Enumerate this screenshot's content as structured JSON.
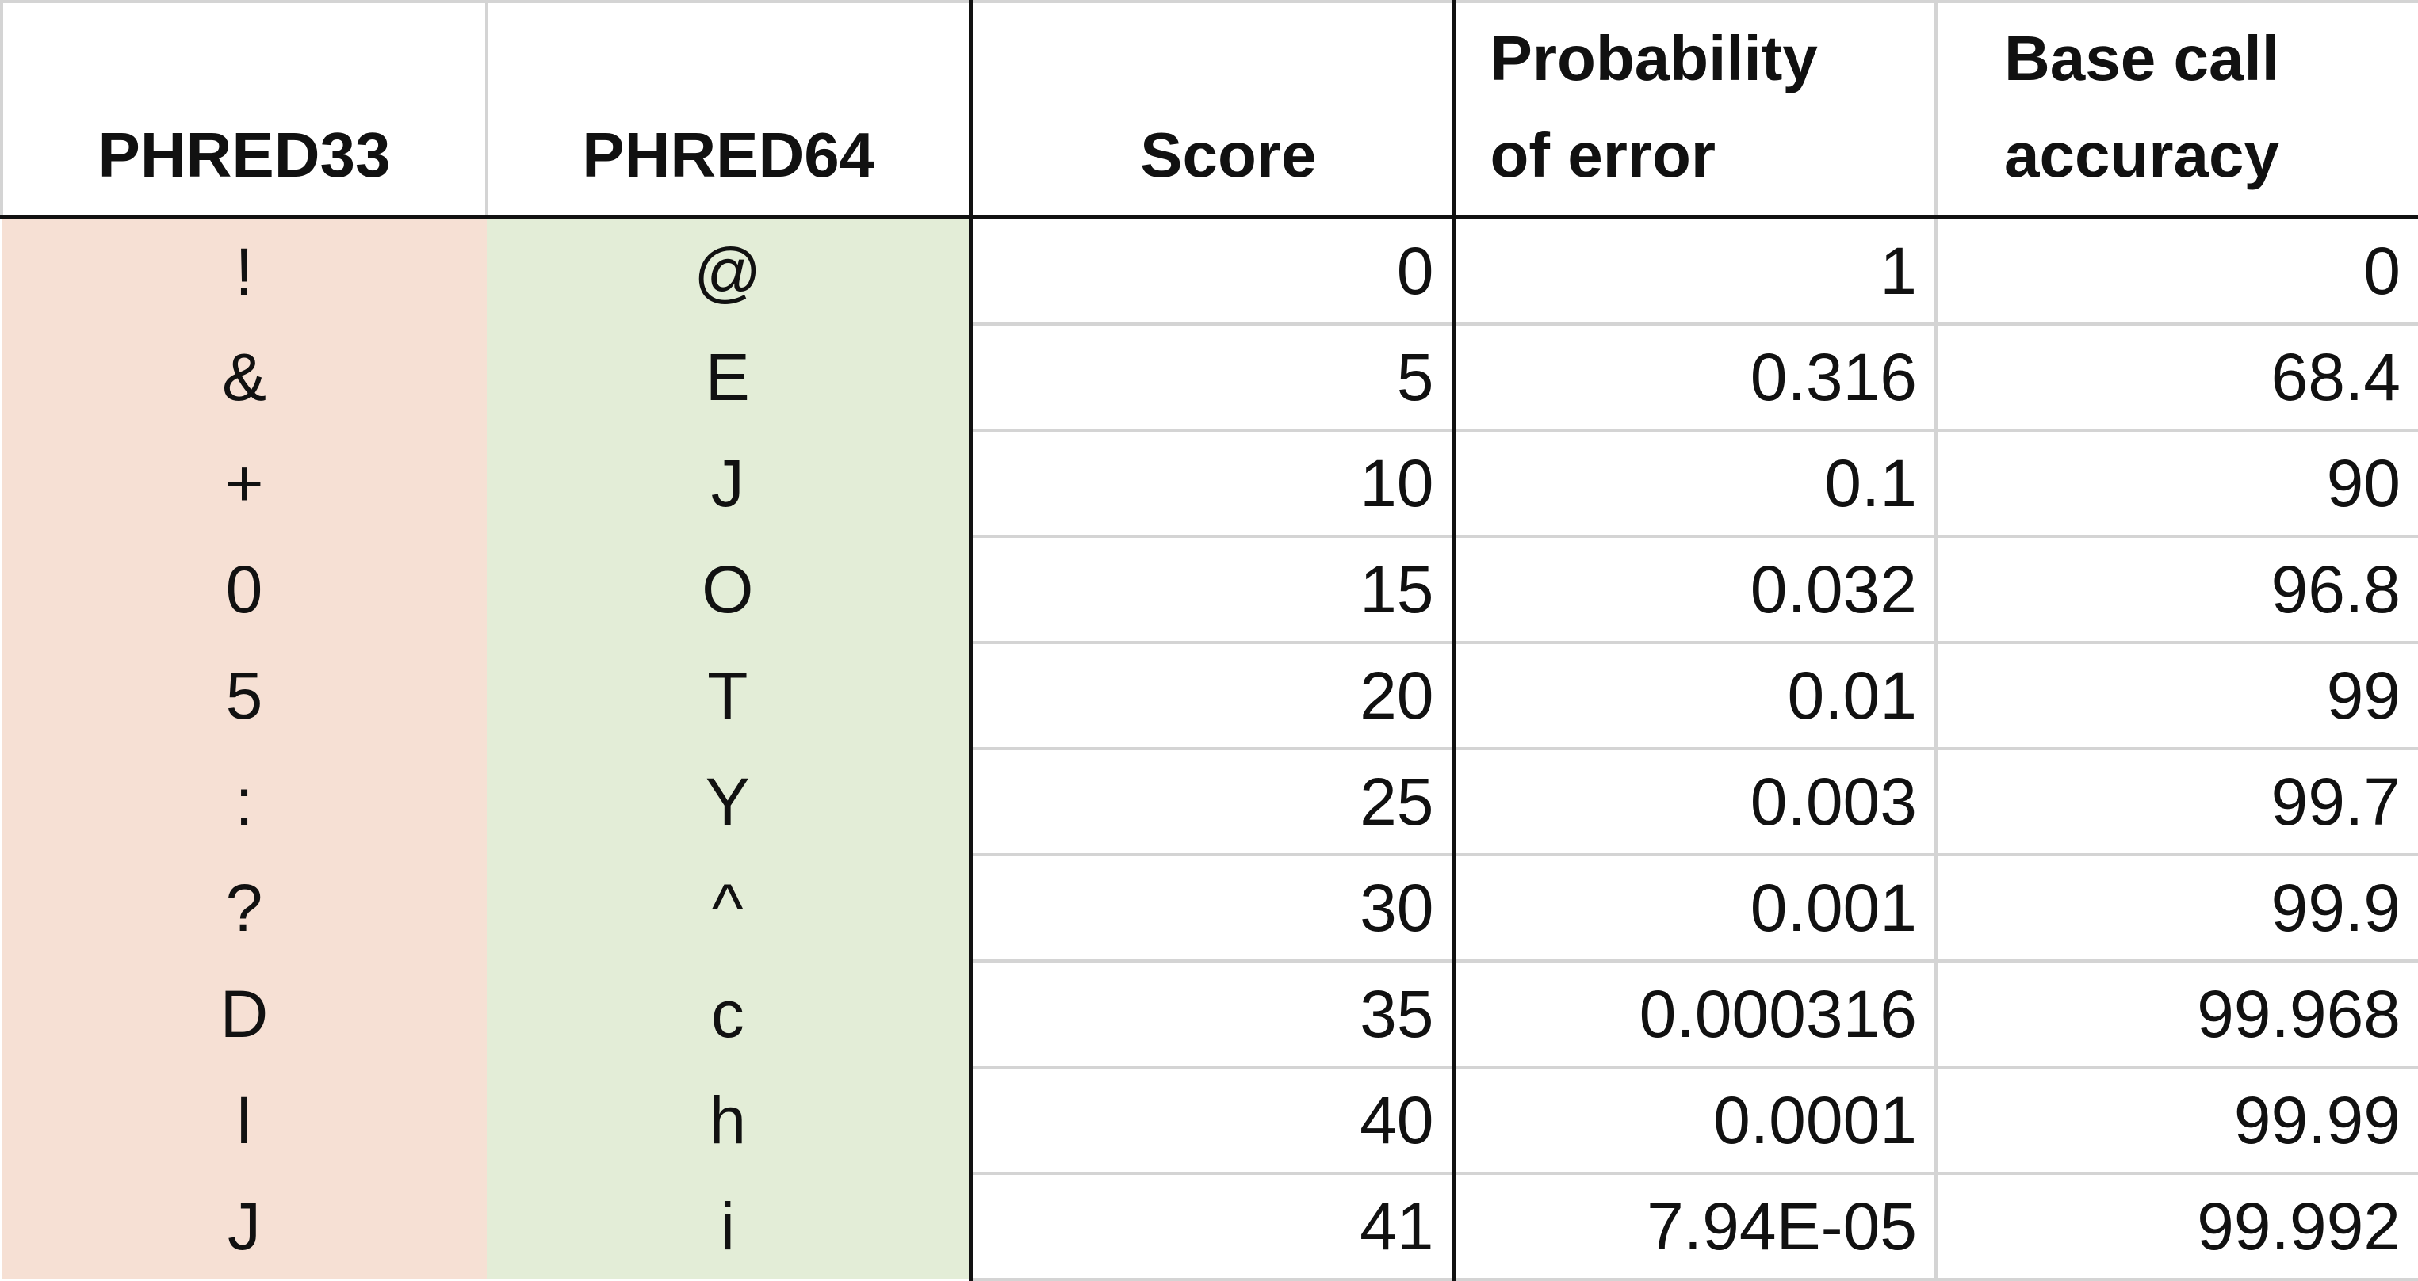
{
  "table": {
    "headers": [
      [
        "PHRED33"
      ],
      [
        "PHRED64"
      ],
      [
        "Score"
      ],
      [
        "Probability",
        "of error"
      ],
      [
        "Base call",
        "accuracy"
      ]
    ],
    "rows": [
      [
        "!",
        "@",
        "0",
        "1",
        "0"
      ],
      [
        "&",
        "E",
        "5",
        "0.316",
        "68.4"
      ],
      [
        "+",
        "J",
        "10",
        "0.1",
        "90"
      ],
      [
        "0",
        "O",
        "15",
        "0.032",
        "96.8"
      ],
      [
        "5",
        "T",
        "20",
        "0.01",
        "99"
      ],
      [
        ":",
        "Y",
        "25",
        "0.003",
        "99.7"
      ],
      [
        "?",
        "^",
        "30",
        "0.001",
        "99.9"
      ],
      [
        "D",
        "c",
        "35",
        "0.000316",
        "99.968"
      ],
      [
        "I",
        "h",
        "40",
        "0.0001",
        "99.99"
      ],
      [
        "J",
        "i",
        "41",
        "7.94E-05",
        "99.992"
      ]
    ]
  },
  "colors": {
    "phred33_fill": "#f6e0d4",
    "phred64_fill": "#e3edd7",
    "grid_light": "#d4d4d4",
    "grid_dark": "#111111"
  }
}
